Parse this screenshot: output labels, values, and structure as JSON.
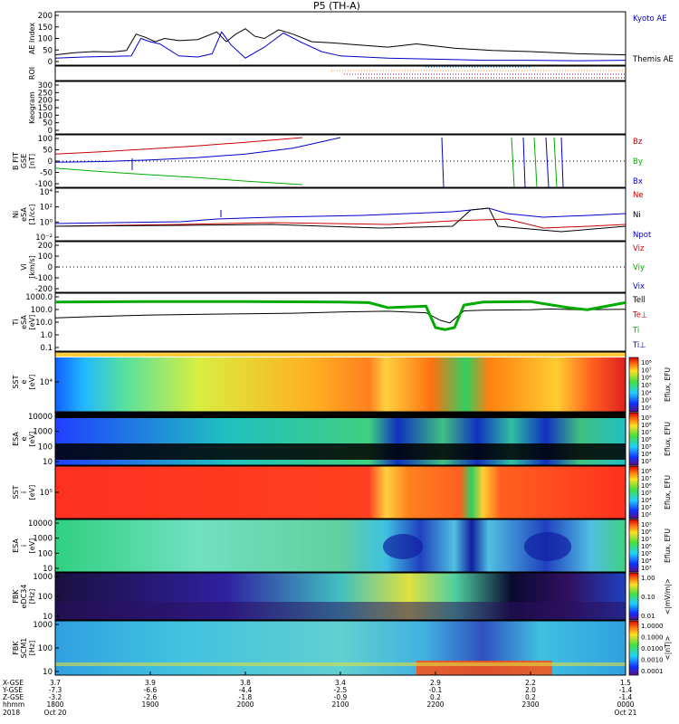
{
  "title": "P5 (TH-A)",
  "date": {
    "year": "2018",
    "start_day": "Oct 20",
    "end_day": "Oct 21"
  },
  "x_axis": {
    "row_labels": [
      "X-GSE",
      "Y-GSE",
      "Z-GSE",
      "hhmm"
    ],
    "ticks": [
      {
        "x": "3.7",
        "y": "-7.3",
        "z": "-3.2",
        "t": "1800"
      },
      {
        "x": "3.9",
        "y": "-6.6",
        "z": "-2.6",
        "t": "1900"
      },
      {
        "x": "3.8",
        "y": "-4.4",
        "z": "-1.8",
        "t": "2000"
      },
      {
        "x": "3.4",
        "y": "-2.5",
        "z": "-0.9",
        "t": "2100"
      },
      {
        "x": "2.9",
        "y": "-0.1",
        "z": "0.2",
        "t": "2200"
      },
      {
        "x": "2.2",
        "y": "2.0",
        "z": "0.2",
        "t": "2300"
      },
      {
        "x": "1.5",
        "y": "-1.4",
        "z": "-1.4",
        "t": "0000"
      }
    ]
  },
  "panels": [
    {
      "id": "ae",
      "ylabel": [
        "AE Index"
      ],
      "yticks": [
        "200",
        "150",
        "100",
        "50",
        "0"
      ],
      "legend": [
        {
          "text": "Kyoto AE",
          "color": "#0000cc"
        },
        {
          "text": "Themis AE",
          "color": "#000000"
        }
      ]
    },
    {
      "id": "roi",
      "ylabel": [
        "ROI"
      ],
      "yticks": [],
      "legend": []
    },
    {
      "id": "keogram",
      "ylabel": [
        "Keogram"
      ],
      "yticks": [
        "300",
        "250",
        "200",
        "150",
        "100",
        "50",
        "0"
      ],
      "legend": []
    },
    {
      "id": "bfit",
      "ylabel": [
        "B FIT",
        "GSE",
        "[nT]"
      ],
      "yticks": [
        "100",
        "50",
        "0",
        "-50",
        "-100"
      ],
      "legend": [
        {
          "text": "Bz",
          "color": "#cc0000"
        },
        {
          "text": "By",
          "color": "#00aa00"
        },
        {
          "text": "Bx",
          "color": "#0000cc"
        }
      ]
    },
    {
      "id": "density",
      "ylabel": [
        "Ni",
        "eSA",
        "[1/cc]"
      ],
      "yticks": [
        "10⁴",
        "10²",
        "10⁰",
        "10⁻²"
      ],
      "legend": [
        {
          "text": "Ne",
          "color": "#cc0000"
        },
        {
          "text": "Ni",
          "color": "#000000"
        },
        {
          "text": "Npot",
          "color": "#0000cc"
        }
      ]
    },
    {
      "id": "vi",
      "ylabel": [
        "Vi",
        "[km/s]"
      ],
      "yticks": [
        "200",
        "100",
        "0",
        "-100",
        "-200"
      ],
      "legend": [
        {
          "text": "Viz",
          "color": "#cc0000"
        },
        {
          "text": "Viy",
          "color": "#00aa00"
        },
        {
          "text": "Vix",
          "color": "#0000cc"
        }
      ]
    },
    {
      "id": "temp",
      "ylabel": [
        "Ti",
        "eSA",
        "[eV]"
      ],
      "yticks": [
        "1000.0",
        "100.0",
        "10.0",
        "1.0",
        "0.1"
      ],
      "legend": [
        {
          "text": "Tell",
          "color": "#000000"
        },
        {
          "text": "Te⊥",
          "color": "#cc0000"
        },
        {
          "text": "Ti",
          "color": "#00aa00"
        },
        {
          "text": "Ti⊥",
          "color": "#0000cc"
        }
      ]
    },
    {
      "id": "sst_e",
      "ylabel": [
        "SST",
        "e",
        "[eV]"
      ],
      "yticks": [
        "10⁴"
      ],
      "legend": []
    },
    {
      "id": "esa_e",
      "ylabel": [
        "ESA",
        "e",
        "[eV]"
      ],
      "yticks": [
        "10000",
        "1000",
        "100",
        "10"
      ],
      "legend": []
    },
    {
      "id": "sst_i",
      "ylabel": [
        "SST",
        "i",
        "[eV]"
      ],
      "yticks": [
        "10⁵"
      ],
      "legend": []
    },
    {
      "id": "esa_i",
      "ylabel": [
        "ESA",
        "i",
        "[eV]"
      ],
      "yticks": [
        "10000",
        "1000",
        "100",
        "10"
      ],
      "legend": []
    },
    {
      "id": "fbk_e",
      "ylabel": [
        "FBK",
        "eDC34",
        "[Hz]"
      ],
      "yticks": [
        "1000",
        "100",
        "10"
      ],
      "legend": []
    },
    {
      "id": "fbk_b",
      "ylabel": [
        "FBK",
        "SCM1",
        "[Hz]"
      ],
      "yticks": [
        "1000",
        "100",
        "10"
      ],
      "legend": []
    }
  ],
  "colorbars": [
    {
      "id": "cb_sst_e",
      "label": "Eflux, EFU",
      "ticks": [
        "10⁸",
        "10⁷",
        "10⁶",
        "10⁵",
        "10⁴",
        "10³",
        "10²"
      ]
    },
    {
      "id": "cb_esa_e",
      "label": "Eflux, EFU",
      "ticks": [
        "10⁹",
        "10⁸",
        "10⁷",
        "10⁶",
        "10⁵",
        "10⁴",
        "10³"
      ]
    },
    {
      "id": "cb_sst_i",
      "label": "Eflux, EFU",
      "ticks": [
        "10⁸",
        "10⁷",
        "10⁶",
        "10⁵",
        "10⁴",
        "10³",
        "10²"
      ]
    },
    {
      "id": "cb_esa_i",
      "label": "Eflux, EFU",
      "ticks": [
        "10⁹",
        "10⁸",
        "10⁷",
        "10⁶",
        "10⁵",
        "10⁴",
        "10³"
      ]
    },
    {
      "id": "cb_fbk_e",
      "label": "<|mV/m|>",
      "ticks": [
        "1.00",
        "0.10",
        "0.01"
      ]
    },
    {
      "id": "cb_fbk_b",
      "label": "<|nT|>",
      "ticks": [
        "1.0000",
        "0.1000",
        "0.0100",
        "0.0010",
        "0.0001"
      ]
    }
  ],
  "chart_data": {
    "type": "line",
    "x_range_hhmm": [
      "1800",
      "0000"
    ],
    "series": [
      {
        "panel": "ae",
        "name": "Themis AE",
        "color": "#000000",
        "x": [
          0,
          0.2,
          0.4,
          0.6,
          0.75,
          0.85,
          0.95,
          1.05,
          1.15,
          1.3,
          1.5,
          1.7,
          1.8,
          1.9,
          2.0,
          2.1,
          2.2,
          2.35,
          2.5,
          2.7,
          2.9,
          3.2,
          3.5,
          3.8,
          4.2,
          4.6,
          5.0,
          5.5,
          6.0
        ],
        "y": [
          35,
          45,
          50,
          48,
          55,
          130,
          115,
          95,
          110,
          100,
          105,
          140,
          95,
          130,
          155,
          120,
          110,
          150,
          130,
          95,
          90,
          80,
          70,
          85,
          65,
          55,
          50,
          40,
          35
        ]
      },
      {
        "panel": "ae",
        "name": "Kyoto AE",
        "color": "#0000cc",
        "x": [
          0,
          0.3,
          0.6,
          0.8,
          0.9,
          1.0,
          1.1,
          1.3,
          1.5,
          1.65,
          1.75,
          1.85,
          2.0,
          2.2,
          2.4,
          2.6,
          2.8,
          3.0,
          3.5,
          4.0,
          4.5,
          5.0,
          5.5,
          6.0
        ],
        "y": [
          20,
          25,
          28,
          30,
          110,
          95,
          85,
          30,
          25,
          40,
          140,
          80,
          20,
          70,
          135,
          90,
          50,
          30,
          20,
          15,
          10,
          10,
          8,
          10
        ]
      },
      {
        "panel": "bfit",
        "name": "Bz",
        "color": "#cc0000",
        "x": [
          0,
          0.5,
          1.0,
          1.5,
          2.0,
          2.6
        ],
        "y": [
          30,
          40,
          52,
          65,
          80,
          100
        ]
      },
      {
        "panel": "bfit",
        "name": "By",
        "color": "#00aa00",
        "x": [
          0,
          0.5,
          1.0,
          1.5,
          2.0,
          2.6
        ],
        "y": [
          -30,
          -45,
          -58,
          -70,
          -85,
          -100
        ]
      },
      {
        "panel": "bfit",
        "name": "Bx",
        "color": "#0000cc",
        "x": [
          0,
          0.5,
          1.0,
          1.5,
          2.0,
          2.5,
          3.0
        ],
        "y": [
          -5,
          -2,
          5,
          15,
          30,
          55,
          100
        ]
      },
      {
        "panel": "temp",
        "name": "Tell",
        "color": "#000000",
        "x": [
          0,
          0.5,
          1.0,
          1.5,
          2.0,
          2.5,
          3.0,
          3.5,
          3.9,
          4.05,
          4.15,
          4.3,
          4.5,
          5.0,
          5.2,
          5.5,
          6.0
        ],
        "y": [
          40,
          55,
          70,
          80,
          90,
          100,
          130,
          150,
          110,
          25,
          15,
          160,
          180,
          200,
          230,
          200,
          220
        ]
      },
      {
        "panel": "temp",
        "name": "Ti",
        "color": "#00aa00",
        "x": [
          0,
          0.5,
          1.0,
          1.5,
          2.0,
          2.5,
          3.0,
          3.3,
          3.5,
          3.9,
          4.0,
          4.1,
          4.2,
          4.3,
          4.5,
          5.0,
          5.4,
          5.6,
          6.0
        ],
        "y": [
          900,
          950,
          1000,
          1000,
          1000,
          950,
          900,
          800,
          300,
          400,
          6,
          4,
          6,
          500,
          900,
          1000,
          300,
          200,
          800
        ]
      }
    ]
  }
}
